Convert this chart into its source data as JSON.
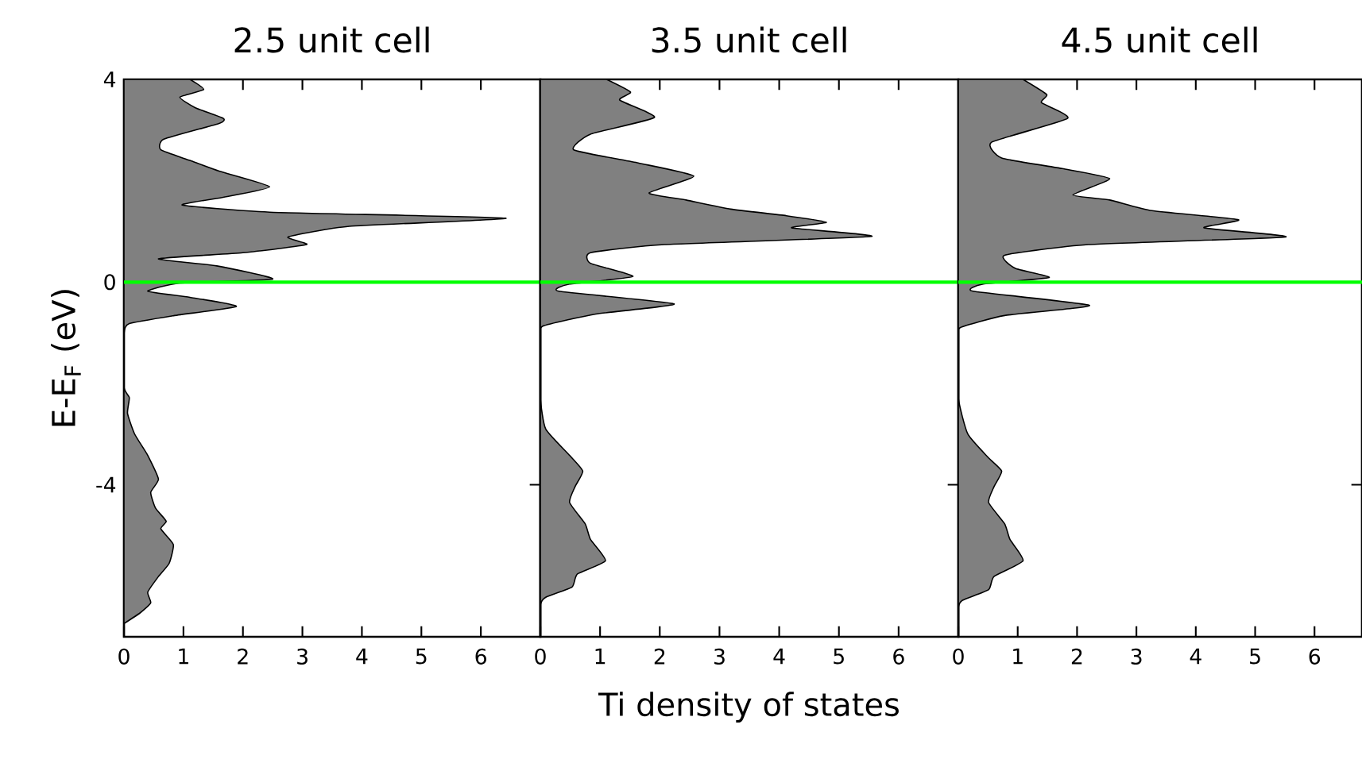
{
  "chart_data": [
    {
      "type": "area",
      "orientation": "horizontal",
      "title": "2.5 unit cell",
      "ylabel": "E-E$_{F}$ (eV)",
      "color": "#808080",
      "xlim": [
        0,
        7
      ],
      "xticks": [
        0,
        1,
        2,
        3,
        4,
        5,
        6
      ],
      "ylim": [
        -7,
        4
      ],
      "yticks": [
        -4,
        0,
        4
      ],
      "ref_lines": [
        {
          "axis": "y",
          "value": 0,
          "color": "#00ff00"
        }
      ],
      "x": [
        4.0,
        3.8,
        3.65,
        3.44,
        3.23,
        3.13,
        2.82,
        2.61,
        2.4,
        2.19,
        1.88,
        1.67,
        1.52,
        1.38,
        1.26,
        1.1,
        0.89,
        0.74,
        0.58,
        0.46,
        0.32,
        0.06,
        -0.02,
        -0.18,
        -0.3,
        -0.48,
        -0.66,
        -0.82,
        -1.03,
        -2.07,
        -2.28,
        -2.59,
        -3.0,
        -3.42,
        -3.89,
        -4.15,
        -4.46,
        -4.72,
        -4.87,
        -5.18,
        -5.55,
        -5.81,
        -6.12,
        -6.33,
        -6.53,
        -6.74
      ],
      "values": [
        1.11,
        1.34,
        0.94,
        1.2,
        1.67,
        1.6,
        0.67,
        0.62,
        1.11,
        1.6,
        2.45,
        1.65,
        0.98,
        2.45,
        6.42,
        3.79,
        2.76,
        3.07,
        2.0,
        0.58,
        1.56,
        2.5,
        0.94,
        0.4,
        1.11,
        1.89,
        0.85,
        0.09,
        0,
        0,
        0.09,
        0.06,
        0.18,
        0.4,
        0.58,
        0.45,
        0.53,
        0.71,
        0.62,
        0.83,
        0.76,
        0.58,
        0.4,
        0.45,
        0.27,
        0
      ]
    },
    {
      "type": "area",
      "orientation": "horizontal",
      "title": "3.5 unit cell",
      "xlabel": "Ti density of states",
      "color": "#808080",
      "xlim": [
        0,
        7
      ],
      "xticks": [
        0,
        1,
        2,
        3,
        4,
        5,
        6
      ],
      "ylim": [
        -7,
        4
      ],
      "yticks": [
        -4,
        0,
        4
      ],
      "tick_labels": "x",
      "ref_lines": [
        {
          "axis": "y",
          "value": 0,
          "color": "#00ff00"
        }
      ],
      "x": [
        4.0,
        3.75,
        3.59,
        3.25,
        2.92,
        2.61,
        2.35,
        2.09,
        1.76,
        1.62,
        1.44,
        1.31,
        1.18,
        1.07,
        0.9,
        0.74,
        0.58,
        0.37,
        0.11,
        -0.04,
        -0.18,
        -0.43,
        -0.63,
        -0.87,
        -1.13,
        -2.28,
        -2.9,
        -3.42,
        -3.73,
        -4.04,
        -4.35,
        -4.77,
        -5.08,
        -5.5,
        -5.76,
        -6.02,
        -6.22,
        -6.38,
        -6.95
      ],
      "values": [
        1.11,
        1.51,
        1.33,
        1.91,
        0.84,
        0.56,
        1.64,
        2.57,
        1.82,
        2.44,
        3.19,
        4.12,
        4.79,
        4.21,
        5.54,
        2.08,
        0.84,
        0.84,
        1.55,
        0.49,
        0.31,
        2.24,
        0.93,
        0.04,
        0,
        0,
        0.09,
        0.49,
        0.71,
        0.58,
        0.49,
        0.75,
        0.84,
        1.09,
        0.62,
        0.53,
        0.09,
        0,
        0
      ]
    },
    {
      "type": "area",
      "orientation": "horizontal",
      "title": "4.5 unit cell",
      "color": "#808080",
      "xlim": [
        0,
        6.8
      ],
      "xticks": [
        0,
        1,
        2,
        3,
        4,
        5,
        6
      ],
      "ylim": [
        -7,
        4
      ],
      "yticks": [
        -4,
        0,
        4
      ],
      "tick_labels": "x",
      "ref_lines": [
        {
          "axis": "y",
          "value": 0,
          "color": "#00ff00"
        }
      ],
      "x": [
        4.0,
        3.7,
        3.54,
        3.23,
        2.76,
        2.45,
        2.24,
        2.04,
        1.72,
        1.62,
        1.41,
        1.23,
        1.07,
        0.89,
        0.74,
        0.53,
        0.27,
        0.09,
        -0.04,
        -0.18,
        -0.46,
        -0.66,
        -0.9,
        -1.13,
        -2.28,
        -3.0,
        -3.47,
        -3.73,
        -4.04,
        -4.35,
        -4.77,
        -5.08,
        -5.5,
        -5.81,
        -6.07,
        -6.28,
        -6.43,
        -6.95
      ],
      "values": [
        1.09,
        1.49,
        1.4,
        1.84,
        0.56,
        0.73,
        1.75,
        2.55,
        1.93,
        2.55,
        3.26,
        4.72,
        4.14,
        5.51,
        2.19,
        0.78,
        0.96,
        1.53,
        0.42,
        0.25,
        2.21,
        0.78,
        0.03,
        0,
        0,
        0.16,
        0.51,
        0.73,
        0.6,
        0.51,
        0.78,
        0.87,
        1.09,
        0.6,
        0.51,
        0.07,
        0,
        0
      ]
    }
  ]
}
